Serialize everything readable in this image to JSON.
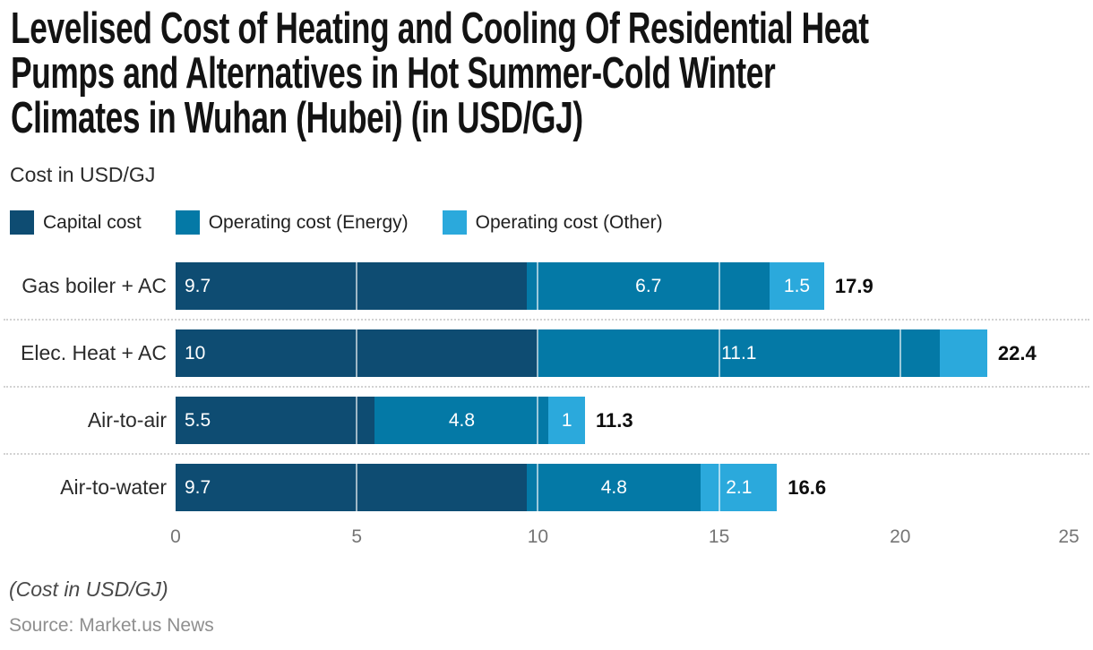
{
  "title": "Levelised Cost of Heating and Cooling Of Residential Heat Pumps and Alternatives in Hot Summer-Cold Winter Climates in Wuhan (Hubei) (in USD/GJ)",
  "title_lines": [
    "Levelised Cost of Heating and Cooling Of Residential Heat",
    "Pumps and Alternatives in Hot Summer-Cold Winter",
    "Climates in Wuhan (Hubei) (in USD/GJ)"
  ],
  "subtitle": "Cost in USD/GJ",
  "legend": {
    "items": [
      {
        "label": "Capital cost",
        "color": "#0e4c72"
      },
      {
        "label": "Operating cost (Energy)",
        "color": "#0479a6"
      },
      {
        "label": "Operating cost (Other)",
        "color": "#2ba9dc"
      }
    ]
  },
  "footer": {
    "note": "(Cost in USD/GJ)",
    "source": "Source: Market.us News"
  },
  "chart_data": {
    "type": "bar",
    "orientation": "horizontal",
    "stacked": true,
    "categories": [
      "Gas boiler + AC",
      "Elec. Heat + AC",
      "Air-to-air",
      "Air-to-water"
    ],
    "series": [
      {
        "name": "Capital cost",
        "color": "#0e4c72",
        "values": [
          9.7,
          10,
          5.5,
          9.7
        ],
        "labels": [
          "9.7",
          "10",
          "5.5",
          "9.7"
        ]
      },
      {
        "name": "Operating cost (Energy)",
        "color": "#0479a6",
        "values": [
          6.7,
          11.1,
          4.8,
          4.8
        ],
        "labels": [
          "6.7",
          "11.1",
          "4.8",
          "4.8"
        ]
      },
      {
        "name": "Operating cost (Other)",
        "color": "#2ba9dc",
        "values": [
          1.5,
          1.3,
          1,
          2.1
        ],
        "labels": [
          "1.5",
          "",
          "1",
          "2.1"
        ]
      }
    ],
    "totals": [
      17.9,
      22.4,
      11.3,
      16.6
    ],
    "total_labels": [
      "17.9",
      "22.4",
      "11.3",
      "16.6"
    ],
    "x_ticks": [
      0,
      5,
      10,
      15,
      20,
      25
    ],
    "xlim": [
      0,
      25
    ],
    "grid": "vertical-white-lines-over-bars",
    "row_separator": "dotted",
    "value_label_color": "#ffffff",
    "gridline_color": "rgba(255,255,255,0.6)"
  }
}
